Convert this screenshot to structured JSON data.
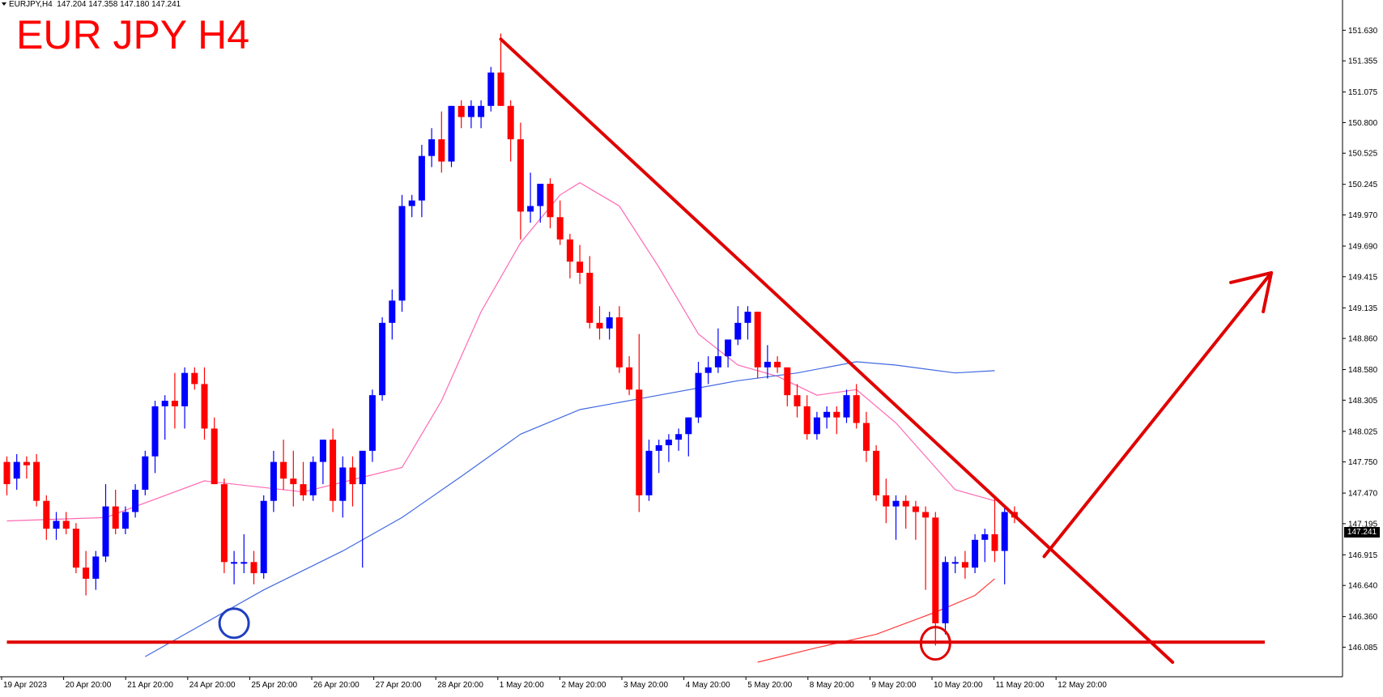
{
  "header": {
    "instrument": "EURJPY,H4",
    "ohlc": "147.204 147.358 147.180 147.241"
  },
  "title": "EUR JPY H4",
  "current_price": "147.241",
  "colors": {
    "bull": "#0000ff",
    "bear": "#ff0000",
    "ma_fast": "#ff69b4",
    "ma_slow": "#4169e1",
    "ma_long": "#ff3b3b",
    "annotation": "#e00000"
  },
  "chart_data": {
    "type": "candlestick",
    "title": "EUR JPY H4",
    "xlabel": "",
    "ylabel": "",
    "ylim": [
      145.95,
      151.72
    ],
    "grid": false,
    "y_ticks": [
      "151.630",
      "151.355",
      "151.075",
      "150.800",
      "150.525",
      "150.245",
      "149.970",
      "149.690",
      "149.415",
      "149.135",
      "148.860",
      "148.580",
      "148.305",
      "148.025",
      "147.750",
      "147.470",
      "147.195",
      "146.915",
      "146.640",
      "146.360",
      "146.085"
    ],
    "x_ticks": [
      "19 Apr 2023",
      "20 Apr 20:00",
      "21 Apr 20:00",
      "24 Apr 20:00",
      "25 Apr 20:00",
      "26 Apr 20:00",
      "27 Apr 20:00",
      "28 Apr 20:00",
      "1 May 20:00",
      "2 May 20:00",
      "3 May 20:00",
      "4 May 20:00",
      "5 May 20:00",
      "8 May 20:00",
      "9 May 20:00",
      "10 May 20:00",
      "11 May 20:00",
      "12 May 20:00"
    ],
    "candles": [
      [
        147.75,
        147.8,
        147.45,
        147.55
      ],
      [
        147.6,
        147.82,
        147.5,
        147.75
      ],
      [
        147.75,
        147.8,
        147.6,
        147.72
      ],
      [
        147.75,
        147.82,
        147.35,
        147.4
      ],
      [
        147.4,
        147.45,
        147.05,
        147.15
      ],
      [
        147.15,
        147.3,
        147.05,
        147.22
      ],
      [
        147.22,
        147.3,
        147.1,
        147.15
      ],
      [
        147.15,
        147.2,
        146.75,
        146.8
      ],
      [
        146.8,
        146.95,
        146.55,
        146.7
      ],
      [
        146.7,
        146.95,
        146.6,
        146.9
      ],
      [
        146.9,
        147.55,
        146.85,
        147.35
      ],
      [
        147.35,
        147.5,
        147.1,
        147.15
      ],
      [
        147.15,
        147.35,
        147.1,
        147.3
      ],
      [
        147.3,
        147.55,
        147.25,
        147.5
      ],
      [
        147.5,
        147.85,
        147.45,
        147.8
      ],
      [
        147.8,
        148.3,
        147.65,
        148.25
      ],
      [
        148.25,
        148.35,
        147.95,
        148.3
      ],
      [
        148.3,
        148.55,
        148.05,
        148.25
      ],
      [
        148.25,
        148.6,
        148.05,
        148.55
      ],
      [
        148.55,
        148.6,
        148.4,
        148.45
      ],
      [
        148.45,
        148.6,
        147.95,
        148.05
      ],
      [
        148.05,
        148.15,
        147.6,
        147.55
      ],
      [
        147.55,
        147.6,
        146.75,
        146.85
      ],
      [
        146.85,
        146.95,
        146.65,
        146.85
      ],
      [
        146.85,
        147.1,
        146.75,
        146.85
      ],
      [
        146.85,
        146.95,
        146.65,
        146.75
      ],
      [
        146.75,
        147.45,
        146.7,
        147.4
      ],
      [
        147.4,
        147.85,
        147.3,
        147.75
      ],
      [
        147.75,
        147.95,
        147.5,
        147.6
      ],
      [
        147.6,
        147.85,
        147.35,
        147.55
      ],
      [
        147.55,
        147.75,
        147.4,
        147.45
      ],
      [
        147.45,
        147.8,
        147.4,
        147.75
      ],
      [
        147.75,
        147.95,
        147.55,
        147.95
      ],
      [
        147.95,
        148.05,
        147.3,
        147.4
      ],
      [
        147.4,
        147.8,
        147.25,
        147.7
      ],
      [
        147.7,
        147.8,
        147.35,
        147.55
      ],
      [
        147.55,
        147.85,
        146.8,
        147.85
      ],
      [
        147.85,
        148.4,
        147.75,
        148.35
      ],
      [
        148.35,
        149.05,
        148.3,
        149.0
      ],
      [
        149.0,
        149.3,
        148.85,
        149.2
      ],
      [
        149.2,
        150.15,
        149.1,
        150.05
      ],
      [
        150.05,
        150.15,
        149.95,
        150.1
      ],
      [
        150.1,
        150.6,
        149.95,
        150.5
      ],
      [
        150.5,
        150.75,
        150.4,
        150.65
      ],
      [
        150.65,
        150.9,
        150.35,
        150.45
      ],
      [
        150.45,
        150.95,
        150.4,
        150.95
      ],
      [
        150.95,
        151.0,
        150.75,
        150.85
      ],
      [
        150.85,
        151.0,
        150.75,
        150.95
      ],
      [
        150.85,
        151.0,
        150.75,
        150.95
      ],
      [
        150.95,
        151.3,
        150.9,
        151.25
      ],
      [
        151.25,
        151.6,
        150.95,
        150.95
      ],
      [
        150.95,
        151.0,
        150.45,
        150.65
      ],
      [
        150.65,
        150.8,
        149.75,
        150.0
      ],
      [
        150.0,
        150.35,
        149.9,
        150.05
      ],
      [
        150.05,
        150.25,
        149.9,
        150.25
      ],
      [
        150.25,
        150.3,
        149.85,
        149.95
      ],
      [
        149.95,
        150.1,
        149.7,
        149.75
      ],
      [
        149.75,
        149.8,
        149.4,
        149.55
      ],
      [
        149.55,
        149.7,
        149.35,
        149.45
      ],
      [
        149.45,
        149.6,
        148.95,
        149.0
      ],
      [
        149.0,
        149.15,
        148.85,
        148.95
      ],
      [
        148.95,
        149.1,
        148.85,
        149.05
      ],
      [
        149.05,
        149.15,
        148.55,
        148.6
      ],
      [
        148.6,
        148.7,
        148.35,
        148.4
      ],
      [
        148.4,
        148.9,
        147.3,
        147.45
      ],
      [
        147.45,
        147.95,
        147.4,
        147.85
      ],
      [
        147.85,
        147.95,
        147.65,
        147.9
      ],
      [
        147.9,
        148.0,
        147.75,
        147.95
      ],
      [
        147.95,
        148.05,
        147.85,
        148.0
      ],
      [
        148.0,
        148.15,
        147.8,
        148.15
      ],
      [
        148.15,
        148.65,
        148.1,
        148.55
      ],
      [
        148.55,
        148.7,
        148.45,
        148.6
      ],
      [
        148.6,
        148.95,
        148.55,
        148.7
      ],
      [
        148.7,
        148.85,
        148.6,
        148.85
      ],
      [
        148.85,
        149.15,
        148.8,
        149.0
      ],
      [
        149.0,
        149.15,
        148.85,
        149.1
      ],
      [
        149.1,
        149.1,
        148.5,
        148.6
      ],
      [
        148.6,
        148.8,
        148.5,
        148.65
      ],
      [
        148.65,
        148.7,
        148.55,
        148.6
      ],
      [
        148.6,
        148.6,
        148.25,
        148.35
      ],
      [
        148.35,
        148.45,
        148.15,
        148.25
      ],
      [
        148.25,
        148.35,
        147.95,
        148.0
      ],
      [
        148.0,
        148.2,
        147.95,
        148.15
      ],
      [
        148.15,
        148.25,
        148.05,
        148.2
      ],
      [
        148.2,
        148.25,
        148.0,
        148.15
      ],
      [
        148.15,
        148.4,
        148.1,
        148.35
      ],
      [
        148.35,
        148.45,
        148.05,
        148.1
      ],
      [
        148.1,
        148.2,
        147.75,
        147.85
      ],
      [
        147.85,
        147.9,
        147.4,
        147.45
      ],
      [
        147.45,
        147.6,
        147.2,
        147.35
      ],
      [
        147.35,
        147.45,
        147.05,
        147.4
      ],
      [
        147.4,
        147.45,
        147.15,
        147.35
      ],
      [
        147.35,
        147.4,
        147.05,
        147.3
      ],
      [
        147.3,
        147.35,
        146.6,
        147.25
      ],
      [
        147.25,
        147.3,
        146.1,
        146.3
      ],
      [
        146.3,
        146.9,
        146.2,
        146.85
      ],
      [
        146.85,
        146.9,
        146.75,
        146.85
      ],
      [
        146.85,
        146.95,
        146.7,
        146.8
      ],
      [
        146.8,
        147.1,
        146.75,
        147.05
      ],
      [
        147.05,
        147.15,
        146.85,
        147.1
      ],
      [
        147.1,
        147.45,
        146.85,
        146.95
      ],
      [
        146.95,
        147.35,
        146.65,
        147.3
      ],
      [
        147.3,
        147.35,
        147.2,
        147.25
      ]
    ],
    "moving_averages": [
      {
        "color": "#ff69b4",
        "values": [
          [
            0,
            147.22
          ],
          [
            10,
            147.25
          ],
          [
            20,
            147.58
          ],
          [
            30,
            147.48
          ],
          [
            40,
            147.7
          ],
          [
            44,
            148.3
          ],
          [
            48,
            149.1
          ],
          [
            52,
            149.72
          ],
          [
            56,
            150.15
          ],
          [
            58,
            150.26
          ],
          [
            62,
            150.05
          ],
          [
            66,
            149.5
          ],
          [
            70,
            148.9
          ],
          [
            74,
            148.62
          ],
          [
            78,
            148.52
          ],
          [
            82,
            148.35
          ],
          [
            86,
            148.4
          ],
          [
            90,
            148.1
          ],
          [
            96,
            147.5
          ],
          [
            100,
            147.4
          ]
        ]
      },
      {
        "color": "#4169e1",
        "values": [
          [
            14,
            146.0
          ],
          [
            20,
            146.3
          ],
          [
            26,
            146.6
          ],
          [
            34,
            146.95
          ],
          [
            40,
            147.25
          ],
          [
            46,
            147.62
          ],
          [
            52,
            148.0
          ],
          [
            58,
            148.22
          ],
          [
            66,
            148.35
          ],
          [
            74,
            148.48
          ],
          [
            80,
            148.55
          ],
          [
            86,
            148.65
          ],
          [
            90,
            148.62
          ],
          [
            96,
            148.55
          ],
          [
            100,
            148.57
          ]
        ]
      },
      {
        "color": "#ff3b3b",
        "values": [
          [
            76,
            145.95
          ],
          [
            82,
            146.08
          ],
          [
            88,
            146.2
          ],
          [
            94,
            146.4
          ],
          [
            98,
            146.55
          ],
          [
            100,
            146.7
          ]
        ]
      }
    ],
    "annotations": {
      "trendline": [
        [
          50,
          151.55
        ],
        [
          118,
          145.95
        ]
      ],
      "support": 146.13,
      "up_arrow": [
        [
          105,
          146.9
        ],
        [
          128,
          149.45
        ]
      ],
      "circles": [
        [
          23,
          146.3
        ],
        [
          94,
          146.12
        ]
      ]
    }
  }
}
